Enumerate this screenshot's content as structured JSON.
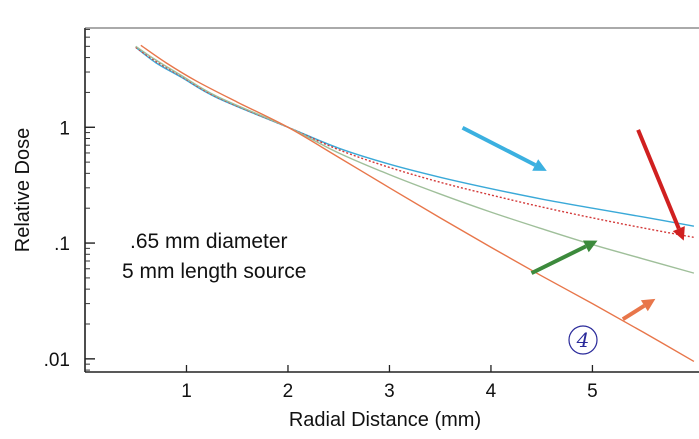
{
  "chart_data": {
    "type": "line",
    "xlabel": "Radial Distance (mm)",
    "ylabel": "Relative Dose",
    "x_ticks": [
      "1",
      "2",
      "3",
      "4",
      "5"
    ],
    "y_ticks": [
      {
        "label": "1",
        "value": 1
      },
      {
        "label": ".1",
        "value": 0.1
      },
      {
        "label": ".01",
        "value": 0.01
      }
    ],
    "xlim": [
      0,
      6.05
    ],
    "ylim": [
      0.0077,
      7.2
    ],
    "y_scale": "log",
    "grid": false,
    "annotation_lines": [
      ".65 mm diameter",
      "5 mm length source"
    ],
    "circled_label": "4",
    "series": [
      {
        "color": "#3aa9d8",
        "style": "solid",
        "points": [
          [
            0.5,
            4.9
          ],
          [
            0.7,
            3.6
          ],
          [
            0.95,
            2.7
          ],
          [
            1.3,
            1.8
          ],
          [
            2.0,
            1.0
          ],
          [
            2.5,
            0.66
          ],
          [
            3.0,
            0.48
          ],
          [
            3.5,
            0.37
          ],
          [
            4.0,
            0.295
          ],
          [
            4.5,
            0.24
          ],
          [
            5.0,
            0.2
          ],
          [
            5.5,
            0.168
          ],
          [
            6.0,
            0.14
          ]
        ]
      },
      {
        "color": "#d33a3a",
        "style": "dotted",
        "points": [
          [
            0.5,
            4.9
          ],
          [
            0.7,
            3.7
          ],
          [
            0.95,
            2.75
          ],
          [
            1.3,
            1.82
          ],
          [
            2.0,
            1.0
          ],
          [
            2.5,
            0.64
          ],
          [
            3.0,
            0.45
          ],
          [
            3.5,
            0.335
          ],
          [
            4.0,
            0.26
          ],
          [
            4.5,
            0.205
          ],
          [
            5.0,
            0.165
          ],
          [
            5.5,
            0.135
          ],
          [
            6.0,
            0.112
          ]
        ]
      },
      {
        "color": "#9fbf9a",
        "style": "solid",
        "points": [
          [
            0.5,
            5.0
          ],
          [
            0.7,
            3.8
          ],
          [
            0.95,
            2.8
          ],
          [
            1.3,
            1.85
          ],
          [
            2.0,
            1.0
          ],
          [
            2.5,
            0.6
          ],
          [
            3.0,
            0.39
          ],
          [
            3.5,
            0.265
          ],
          [
            4.0,
            0.185
          ],
          [
            4.5,
            0.133
          ],
          [
            5.0,
            0.097
          ],
          [
            5.5,
            0.073
          ],
          [
            6.0,
            0.055
          ]
        ]
      },
      {
        "color": "#e8764a",
        "style": "solid",
        "points": [
          [
            0.55,
            5.1
          ],
          [
            0.8,
            3.6
          ],
          [
            1.1,
            2.5
          ],
          [
            1.5,
            1.65
          ],
          [
            2.0,
            1.0
          ],
          [
            2.5,
            0.55
          ],
          [
            3.0,
            0.3
          ],
          [
            3.5,
            0.165
          ],
          [
            4.0,
            0.092
          ],
          [
            4.5,
            0.052
          ],
          [
            5.0,
            0.03
          ],
          [
            5.5,
            0.017
          ],
          [
            6.0,
            0.0095
          ]
        ]
      }
    ],
    "arrows": [
      {
        "color": "#3bb0e0",
        "from": [
          3.72,
          0.99
        ],
        "to": [
          4.55,
          0.42
        ]
      },
      {
        "color": "#d02020",
        "from": [
          5.45,
          0.95
        ],
        "to": [
          5.9,
          0.105
        ]
      },
      {
        "color": "#3c8a3c",
        "from": [
          4.4,
          0.055
        ],
        "to": [
          5.05,
          0.105
        ]
      },
      {
        "color": "#e8764a",
        "from": [
          5.3,
          0.022
        ],
        "to": [
          5.62,
          0.033
        ]
      }
    ]
  }
}
